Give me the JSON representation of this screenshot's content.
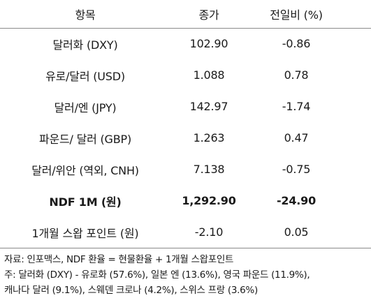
{
  "table": {
    "headers": {
      "item": "항목",
      "close": "종가",
      "change": "전일비 (%)"
    },
    "rows": [
      {
        "item": "달러화 (DXY)",
        "close": "102.90",
        "change": "-0.86"
      },
      {
        "item": "유로/달러 (USD)",
        "close": "1.088",
        "change": "0.78"
      },
      {
        "item": "달러/엔 (JPY)",
        "close": "142.97",
        "change": "-1.74"
      },
      {
        "item": "파운드/ 달러 (GBP)",
        "close": "1.263",
        "change": "0.47"
      },
      {
        "item": "달러/위안 (역외, CNH)",
        "close": "7.138",
        "change": "-0.75"
      },
      {
        "item": "NDF 1M (원)",
        "close": "1,292.90",
        "change": "-24.90"
      },
      {
        "item": "1개월 스왑 포인트 (원)",
        "close": "-2.10",
        "change": "0.05"
      }
    ]
  },
  "notes": {
    "line1": "자료: 인포맥스, NDF 환율 = 현물환율 + 1개월 스왑포인트",
    "line2": "주: 달러화 (DXY) - 유로화 (57.6%), 일본 엔 (13.6%), 영국 파운드 (11.9%),",
    "line3": "캐나다 달러 (9.1%), 스웨덴 크로나 (4.2%), 스위스 프랑 (3.6%)"
  }
}
